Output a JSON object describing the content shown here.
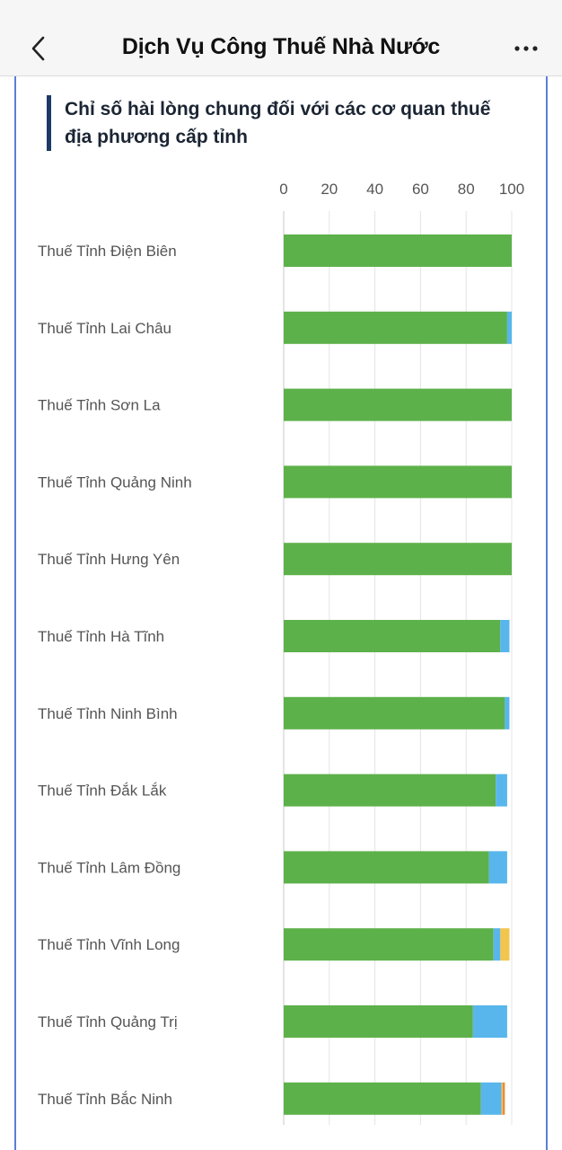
{
  "header": {
    "title": "Dịch Vụ Công Thuế Nhà Nước",
    "back_icon": "chevron-left-icon",
    "more_icon": "more-horizontal-icon"
  },
  "colors": {
    "satisfied": "#5db14a",
    "neutral": "#58b6ec",
    "dissatisfied": "#f3c54e",
    "very_dissatisfied": "#ec8a3a",
    "accent_bar": "#1c3a66",
    "frame": "#5a7fd6"
  },
  "chart_data": {
    "type": "bar",
    "orientation": "horizontal",
    "stacked": true,
    "title": "Chỉ số hài lòng chung đối với các cơ quan thuế địa phương cấp tỉnh",
    "x_ticks": [
      "0",
      "20",
      "40",
      "60",
      "80",
      "100"
    ],
    "xlim": [
      0,
      100
    ],
    "grid": true,
    "legend": "none",
    "categories": [
      "Thuế Tỉnh Điện Biên",
      "Thuế Tỉnh Lai Châu",
      "Thuế Tỉnh Sơn La",
      "Thuế Tỉnh Quảng Ninh",
      "Thuế Tỉnh Hưng Yên",
      "Thuế Tỉnh Hà Tĩnh",
      "Thuế Tỉnh Ninh Bình",
      "Thuế Tỉnh Đắk Lắk",
      "Thuế Tỉnh Lâm Đồng",
      "Thuế Tỉnh Vĩnh Long",
      "Thuế Tỉnh Quảng Trị",
      "Thuế Tỉnh Bắc Ninh"
    ],
    "series": [
      {
        "color": "#5db14a",
        "values": [
          100,
          98,
          100,
          100,
          100,
          95,
          97,
          93,
          90,
          92,
          83,
          86.5
        ]
      },
      {
        "color": "#58b6ec",
        "values": [
          0,
          2,
          0,
          0,
          0,
          4,
          2,
          5,
          8,
          3,
          15,
          9
        ]
      },
      {
        "color": "#f3c54e",
        "values": [
          0,
          0,
          0,
          0,
          0,
          0,
          0,
          0,
          0,
          4,
          0,
          0.5
        ]
      },
      {
        "color": "#ec8a3a",
        "values": [
          0,
          0,
          0,
          0,
          0,
          0,
          0,
          0,
          0,
          0,
          0,
          1
        ]
      }
    ]
  }
}
